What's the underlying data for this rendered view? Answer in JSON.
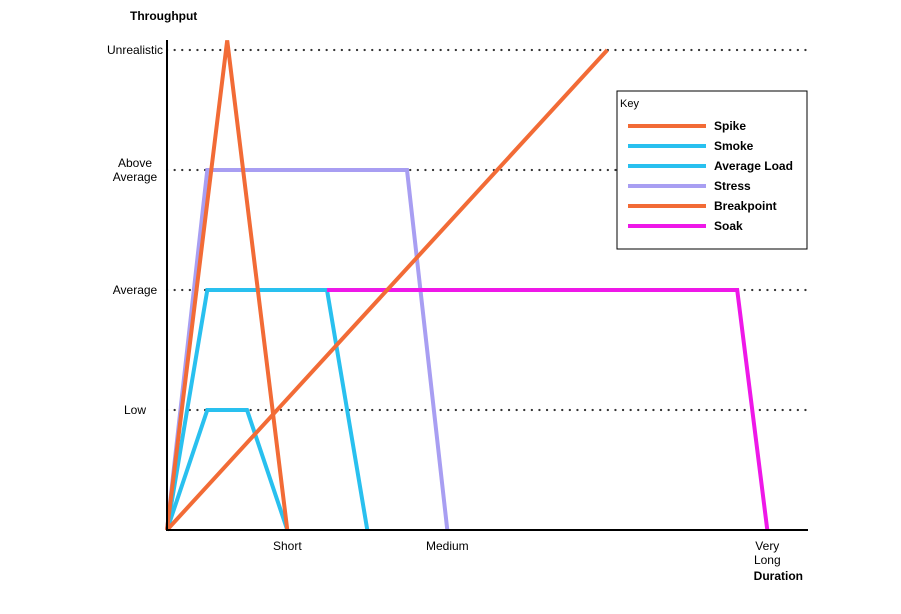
{
  "chart_data": {
    "type": "line",
    "ylabel": "Throughput",
    "xlabel": "Duration",
    "y_levels": [
      {
        "value": 0.25,
        "label": "Low",
        "lines": [
          "Low"
        ]
      },
      {
        "value": 0.5,
        "label": "Average",
        "lines": [
          "Average"
        ]
      },
      {
        "value": 0.75,
        "label": "Above Average",
        "lines": [
          "Above",
          "Average"
        ]
      },
      {
        "value": 1,
        "label": "Unrealistic",
        "lines": [
          "Unrealistic"
        ]
      }
    ],
    "x_ticks": [
      {
        "value": 0.188,
        "label": "Short",
        "lines": [
          "Short"
        ]
      },
      {
        "value": 0.438,
        "label": "Medium",
        "lines": [
          "Medium"
        ]
      },
      {
        "value": 0.938,
        "label": "Very Long",
        "lines": [
          "Very",
          "Long"
        ]
      }
    ],
    "xlim": [
      0,
      1
    ],
    "ylim": [
      0,
      1
    ],
    "grid": "dotted horizontal lines at throughput levels",
    "legend": {
      "title": "Key",
      "placement": "top-right",
      "entries": [
        {
          "name": "Spike",
          "color": "#f26b36"
        },
        {
          "name": "Smoke",
          "color": "#29c0ef"
        },
        {
          "name": "Average Load",
          "color": "#29c0ef"
        },
        {
          "name": "Stress",
          "color": "#a89ef2"
        },
        {
          "name": "Breakpoint",
          "color": "#f26b36"
        },
        {
          "name": "Soak",
          "color": "#ee18e8"
        }
      ]
    },
    "series": [
      {
        "name": "Smoke",
        "color": "#29c0ef",
        "points": [
          [
            0,
            0
          ],
          [
            0.063,
            0.25
          ],
          [
            0.125,
            0.25
          ],
          [
            0.188,
            0
          ]
        ]
      },
      {
        "name": "Average Load",
        "color": "#29c0ef",
        "points": [
          [
            0,
            0
          ],
          [
            0.063,
            0.5
          ],
          [
            0.25,
            0.5
          ],
          [
            0.313,
            0
          ]
        ]
      },
      {
        "name": "Stress",
        "color": "#a89ef2",
        "points": [
          [
            0,
            0
          ],
          [
            0.063,
            0.75
          ],
          [
            0.375,
            0.75
          ],
          [
            0.438,
            0
          ]
        ]
      },
      {
        "name": "Soak",
        "color": "#ee18e8",
        "points": [
          [
            0.25,
            0.5
          ],
          [
            0.891,
            0.5
          ],
          [
            0.938,
            0
          ]
        ]
      },
      {
        "name": "Spike",
        "color": "#f26b36",
        "points": [
          [
            0,
            0
          ],
          [
            0.094,
            1.02
          ],
          [
            0.188,
            0
          ]
        ]
      },
      {
        "name": "Breakpoint",
        "color": "#f26b36",
        "points": [
          [
            0,
            0
          ],
          [
            0.688,
            1
          ]
        ]
      }
    ]
  }
}
